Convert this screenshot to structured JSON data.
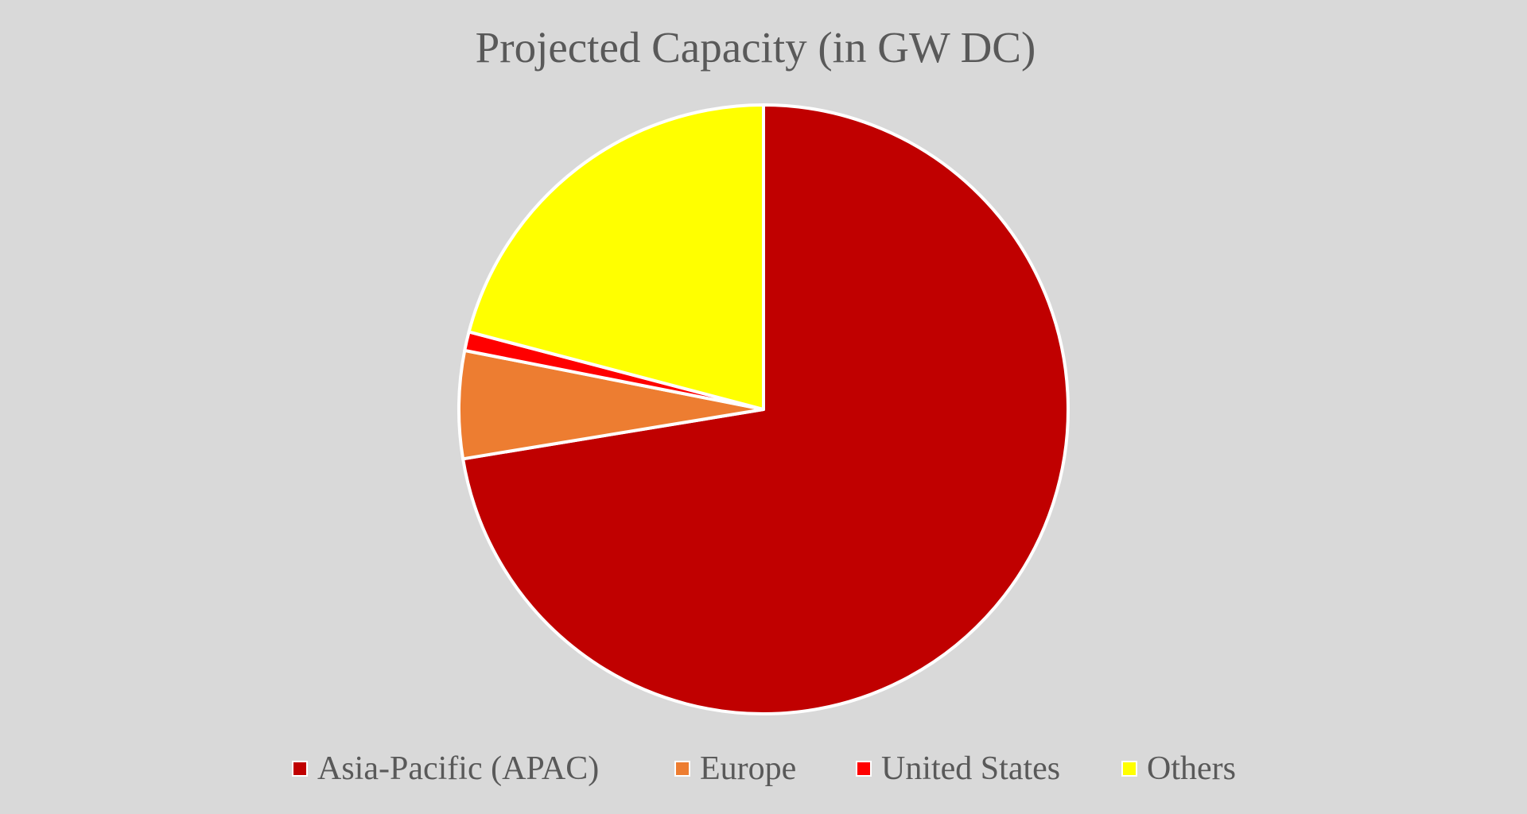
{
  "chart_data": {
    "type": "pie",
    "title": "Projected Capacity (in GW DC)",
    "categories": [
      "Asia-Pacific (APAC)",
      "Europe",
      "United States",
      "Others"
    ],
    "values": [
      72.4,
      5.7,
      1.0,
      20.9
    ],
    "colors": [
      "#c00000",
      "#ed7d31",
      "#ff0000",
      "#ffff00"
    ],
    "start_angle_deg": 0,
    "direction": "clockwise",
    "slice_border_color": "#ffffff",
    "legend_position": "bottom"
  }
}
